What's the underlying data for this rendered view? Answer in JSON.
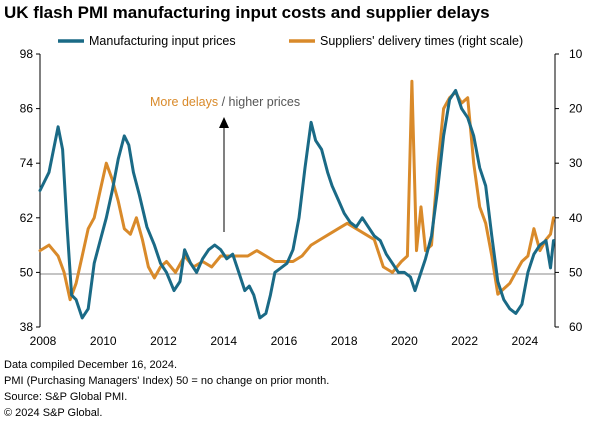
{
  "title": "UK flash PMI manufacturing input costs and supplier delays",
  "annotation": {
    "part1": "More delays",
    "separator": " / ",
    "part2": "higher prices"
  },
  "footnotes": [
    "Data compiled December 16, 2024.",
    "PMI (Purchasing Managers' Index) 50 = no change on prior month.",
    "Source: S&P Global PMI.",
    "© 2024 S&P Global."
  ],
  "colors": {
    "input_prices": "#1a6a86",
    "delivery_times": "#d98a2a",
    "annotation_part2": "#555555"
  },
  "chart_data": {
    "type": "line",
    "title": "UK flash PMI manufacturing input costs and supplier delays",
    "x_ticks": [
      "2008",
      "2010",
      "2012",
      "2014",
      "2016",
      "2018",
      "2020",
      "2022",
      "2024"
    ],
    "y_left_ticks": [
      38,
      50,
      62,
      74,
      86,
      98
    ],
    "y_left_range": [
      38,
      98
    ],
    "y_right_ticks": [
      10,
      20,
      30,
      40,
      50,
      60
    ],
    "y_right_range": [
      60,
      10
    ],
    "y_right_inverted": true,
    "reference_line": 50,
    "legend_position": "top",
    "series": [
      {
        "name": "Manufacturing input prices",
        "axis": "left",
        "x": [
          2007.9,
          2008.2,
          2008.5,
          2008.65,
          2008.8,
          2008.95,
          2009.1,
          2009.3,
          2009.5,
          2009.7,
          2009.9,
          2010.1,
          2010.3,
          2010.5,
          2010.7,
          2010.85,
          2011.0,
          2011.2,
          2011.45,
          2011.7,
          2011.9,
          2012.1,
          2012.35,
          2012.55,
          2012.7,
          2012.9,
          2013.1,
          2013.3,
          2013.5,
          2013.7,
          2013.9,
          2014.1,
          2014.3,
          2014.5,
          2014.7,
          2014.85,
          2015.0,
          2015.2,
          2015.4,
          2015.55,
          2015.7,
          2015.9,
          2016.1,
          2016.3,
          2016.5,
          2016.7,
          2016.9,
          2017.05,
          2017.25,
          2017.45,
          2017.6,
          2017.8,
          2018.0,
          2018.2,
          2018.4,
          2018.6,
          2018.8,
          2019.0,
          2019.2,
          2019.4,
          2019.6,
          2019.8,
          2020.0,
          2020.2,
          2020.35,
          2020.5,
          2020.7,
          2020.9,
          2021.1,
          2021.3,
          2021.5,
          2021.7,
          2021.9,
          2022.1,
          2022.3,
          2022.5,
          2022.7,
          2022.9,
          2023.1,
          2023.3,
          2023.5,
          2023.7,
          2023.9,
          2024.1,
          2024.3,
          2024.5,
          2024.7,
          2024.85,
          2024.95
        ],
        "values": [
          68,
          72,
          82,
          77,
          60,
          45,
          44,
          40,
          42,
          52,
          57,
          62,
          68,
          75,
          80,
          78,
          72,
          67,
          60,
          56,
          52,
          50,
          46,
          48,
          55,
          52,
          50,
          53,
          55,
          56,
          55,
          53,
          54,
          50,
          46,
          47,
          45,
          40,
          41,
          45,
          50,
          51,
          52,
          55,
          62,
          73,
          83,
          79,
          77,
          72,
          69,
          66,
          63,
          61,
          60,
          62,
          60,
          58,
          57,
          54,
          52,
          50,
          50,
          49,
          46,
          49,
          53,
          58,
          68,
          80,
          88,
          90,
          86,
          84,
          80,
          73,
          69,
          58,
          48,
          44,
          42,
          41,
          43,
          50,
          54,
          56,
          57,
          51,
          57
        ]
      },
      {
        "name": "Suppliers' delivery times (right scale)",
        "axis": "right",
        "x": [
          2007.9,
          2008.2,
          2008.5,
          2008.7,
          2008.9,
          2009.1,
          2009.3,
          2009.5,
          2009.7,
          2009.9,
          2010.1,
          2010.3,
          2010.5,
          2010.7,
          2010.9,
          2011.1,
          2011.3,
          2011.5,
          2011.7,
          2011.9,
          2012.1,
          2012.4,
          2012.7,
          2013.0,
          2013.3,
          2013.6,
          2013.9,
          2014.2,
          2014.5,
          2014.8,
          2015.1,
          2015.4,
          2015.7,
          2016.0,
          2016.3,
          2016.6,
          2016.9,
          2017.2,
          2017.5,
          2017.8,
          2018.1,
          2018.4,
          2018.7,
          2019.0,
          2019.3,
          2019.6,
          2019.9,
          2020.1,
          2020.25,
          2020.4,
          2020.55,
          2020.7,
          2020.9,
          2021.1,
          2021.3,
          2021.5,
          2021.7,
          2021.9,
          2022.1,
          2022.3,
          2022.5,
          2022.7,
          2022.9,
          2023.1,
          2023.3,
          2023.5,
          2023.7,
          2023.9,
          2024.1,
          2024.3,
          2024.5,
          2024.7,
          2024.85,
          2024.95
        ],
        "values": [
          46,
          45,
          47,
          50,
          55,
          52,
          47,
          42,
          40,
          35,
          30,
          33,
          37,
          42,
          43,
          40,
          44,
          49,
          51,
          49,
          48,
          50,
          47,
          49,
          48,
          49,
          47,
          47,
          47,
          47,
          46,
          47,
          48,
          48,
          48,
          47,
          45,
          44,
          43,
          42,
          41,
          42,
          43,
          44,
          49,
          50,
          48,
          47,
          15,
          46,
          38,
          46,
          45,
          31,
          20,
          18,
          17,
          19,
          18,
          30,
          38,
          41,
          47,
          54,
          53,
          52,
          50,
          48,
          47,
          42,
          46,
          44,
          43,
          40
        ]
      }
    ]
  }
}
